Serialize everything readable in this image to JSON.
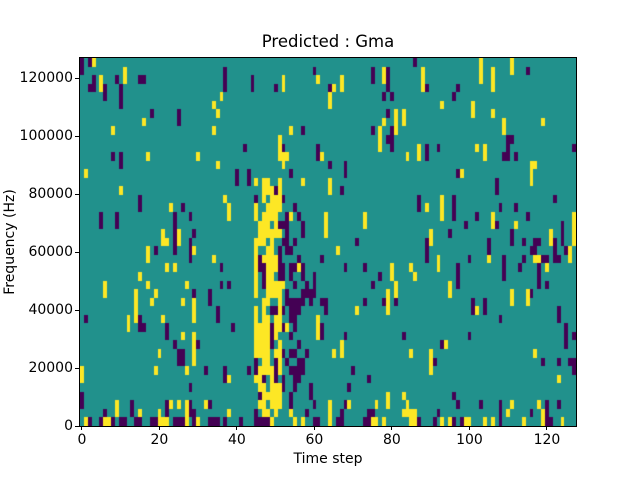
{
  "chart_data": {
    "type": "heatmap",
    "title": "Predicted : Gma",
    "xlabel": "Time step",
    "ylabel": "Frequency (Hz)",
    "x_ticks": [
      0,
      20,
      40,
      60,
      80,
      100,
      120
    ],
    "y_ticks": [
      0,
      20000,
      40000,
      60000,
      80000,
      100000,
      120000
    ],
    "x_range": [
      -0.5,
      127.5
    ],
    "y_range": [
      0,
      127000
    ],
    "grid": {
      "cols": 128,
      "rows": 43,
      "row_height_hz": 2953
    },
    "colormap": {
      "name": "viridis-3-level",
      "low": "#440154",
      "mid": "#21918c",
      "high": "#fde725"
    },
    "background_level": "mid",
    "legend": "none",
    "generated_pattern": {
      "seed": 7,
      "base": {
        "yellow": 0.02,
        "dark": 0.024
      },
      "run_extend_p": 0.35,
      "run_extend_p2": 0.3,
      "regions": [
        {
          "cols": [
            45,
            51
          ],
          "rows": [
            1,
            28
          ],
          "yellow": 0.35,
          "dark": 0.05
        },
        {
          "cols": [
            45,
            50
          ],
          "rows": [
            3,
            26
          ],
          "yellow": 0.28,
          "dark": 0.0
        },
        {
          "cols": [
            51,
            57
          ],
          "rows": [
            3,
            26
          ],
          "yellow": 0.0,
          "dark": 0.3
        },
        {
          "cols": [
            56,
            62
          ],
          "rows": [
            1,
            18
          ],
          "yellow": 0.0,
          "dark": 0.07
        },
        {
          "cols": [
            14,
            30
          ],
          "rows": [
            1,
            22
          ],
          "yellow": 0.07,
          "dark": 0.015
        },
        {
          "cols": [
            0,
            127
          ],
          "rows": [
            0,
            0
          ],
          "yellow": 0.15,
          "dark": 0.2
        },
        {
          "cols": [
            0,
            127
          ],
          "rows": [
            1,
            2
          ],
          "yellow": 0.05,
          "dark": 0.04
        },
        {
          "cols": [
            100,
            127
          ],
          "rows": [
            19,
            27
          ],
          "yellow": 0.02,
          "dark": 0.05
        },
        {
          "cols": [
            103,
            120
          ],
          "rows": [
            28,
            35
          ],
          "yellow": 0.04,
          "dark": 0.02
        },
        {
          "cols": [
            2,
            10
          ],
          "rows": [
            38,
            42
          ],
          "yellow": 0.03,
          "dark": 0.05
        }
      ]
    }
  }
}
